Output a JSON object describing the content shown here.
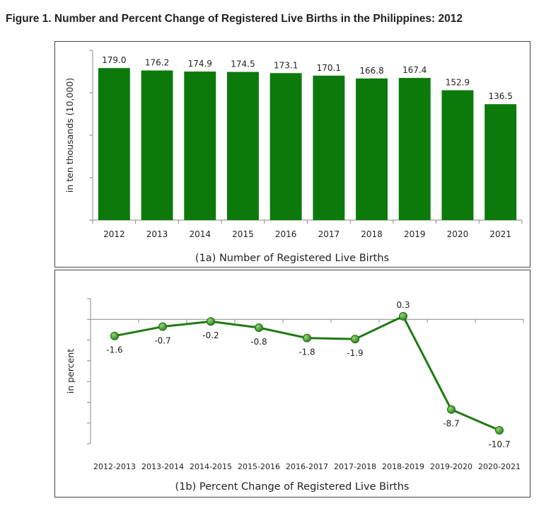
{
  "figure_title": "Figure 1. Number and Percent Change of Registered Live Births in the Philippines: 2012",
  "chart_data": [
    {
      "type": "bar",
      "title": "(1a) Number of Registered Live Births",
      "ylabel": "in ten thousands (10,000)",
      "xlabel": "",
      "categories": [
        "2012",
        "2013",
        "2014",
        "2015",
        "2016",
        "2017",
        "2018",
        "2019",
        "2020",
        "2021"
      ],
      "values": [
        179.0,
        176.2,
        174.9,
        174.5,
        173.1,
        170.1,
        166.8,
        167.4,
        152.9,
        136.5
      ],
      "value_labels": [
        "179.0",
        "176.2",
        "174.9",
        "174.5",
        "173.1",
        "170.1",
        "166.8",
        "167.4",
        "152.9",
        "136.5"
      ],
      "ylim": [
        0,
        200
      ],
      "grid": false,
      "colors": {
        "bar": "#0b7a0b"
      }
    },
    {
      "type": "line",
      "title": "(1b) Percent Change of Registered Live Births",
      "ylabel": "in percent",
      "xlabel": "",
      "categories": [
        "2012-2013",
        "2013-2014",
        "2014-2015",
        "2015-2016",
        "2016-2017",
        "2017-2018",
        "2018-2019",
        "2019-2020",
        "2020-2021"
      ],
      "values": [
        -1.6,
        -0.7,
        -0.2,
        -0.8,
        -1.8,
        -1.9,
        0.3,
        -8.7,
        -10.7
      ],
      "value_labels": [
        "-1.6",
        "-0.7",
        "-0.2",
        "-0.8",
        "-1.8",
        "-1.9",
        "0.3",
        "-8.7",
        "-10.7"
      ],
      "ylim": [
        -12,
        2
      ],
      "grid": false,
      "colors": {
        "line": "#1f7a12",
        "marker": "#2e8b1f"
      }
    }
  ]
}
